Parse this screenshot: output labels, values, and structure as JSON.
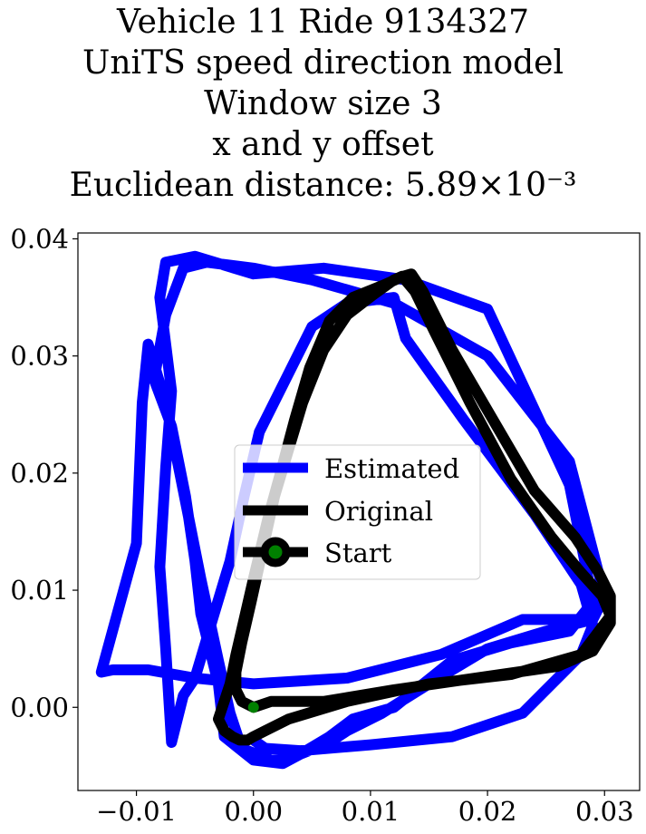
{
  "chart_data": {
    "type": "line",
    "title_lines": [
      "Vehicle 11 Ride 9134327",
      "UniTS speed direction model",
      "Window size 3",
      "x and y offset",
      "Euclidean distance: 5.89×10⁻³"
    ],
    "xlim": [
      -0.015,
      0.033
    ],
    "ylim": [
      -0.0071,
      0.0405
    ],
    "x_ticks": [
      -0.01,
      0.0,
      0.01,
      0.02,
      0.03
    ],
    "x_tick_labels": [
      "−0.01",
      "0.00",
      "0.01",
      "0.02",
      "0.03"
    ],
    "y_ticks": [
      0.0,
      0.01,
      0.02,
      0.03,
      0.04
    ],
    "y_tick_labels": [
      "0.00",
      "0.01",
      "0.02",
      "0.03",
      "0.04"
    ],
    "grid": false,
    "legend_position": "center",
    "series": [
      {
        "name": "Estimated",
        "color": "#0000ff",
        "x": [
          0.0,
          0.001,
          0.004,
          0.01,
          0.017,
          0.023,
          0.028,
          0.029,
          0.028,
          0.024,
          0.018,
          0.013,
          0.012,
          0.008,
          0.005,
          0.003,
          0.0005,
          -0.0008,
          -0.002,
          -0.0035,
          -0.005,
          -0.006,
          -0.0065,
          -0.007,
          -0.0075,
          -0.008,
          -0.0075,
          -0.007,
          -0.0075,
          -0.008,
          -0.0075,
          -0.005,
          0.0,
          0.006,
          0.013,
          0.02,
          0.027,
          0.029,
          0.027,
          0.022,
          0.017,
          0.012,
          0.0085,
          0.0065,
          0.004,
          0.0025,
          0.0,
          -0.0025,
          -0.003,
          -0.0045,
          -0.005,
          -0.0058,
          -0.007,
          -0.0085,
          -0.0075,
          -0.006,
          -0.004,
          0.0,
          0.005,
          0.012,
          0.02,
          0.027,
          0.03,
          0.029,
          0.025,
          0.02,
          0.015,
          0.011,
          0.008,
          0.0065,
          0.004,
          0.0015,
          -0.001,
          -0.002,
          -0.003,
          -0.0045,
          -0.006,
          -0.0075,
          -0.009,
          -0.0095,
          -0.01,
          -0.013,
          -0.012,
          -0.009,
          -0.005,
          0.0,
          0.008,
          0.016,
          0.023,
          0.028
        ],
        "y": [
          -0.0028,
          -0.0035,
          -0.0037,
          -0.0032,
          -0.0025,
          -0.0005,
          0.0045,
          0.007,
          0.0105,
          0.0165,
          0.0245,
          0.0315,
          0.035,
          0.0345,
          0.0325,
          0.0285,
          0.0235,
          0.018,
          0.0125,
          0.0075,
          0.0025,
          0.001,
          -0.001,
          -0.003,
          0.005,
          0.012,
          0.0205,
          0.027,
          0.031,
          0.035,
          0.038,
          0.0385,
          0.037,
          0.0375,
          0.0365,
          0.034,
          0.019,
          0.009,
          0.0065,
          0.0055,
          0.004,
          0.0,
          -0.001,
          -0.0025,
          -0.004,
          -0.0048,
          -0.0045,
          -0.0025,
          0.002,
          0.008,
          0.0125,
          0.018,
          0.024,
          0.028,
          0.0335,
          0.0375,
          0.038,
          0.0375,
          0.0365,
          0.0345,
          0.03,
          0.021,
          0.0095,
          0.0075,
          0.0065,
          0.005,
          0.002,
          -0.0005,
          -0.002,
          -0.003,
          -0.004,
          -0.0045,
          -0.0035,
          -0.0005,
          0.004,
          0.011,
          0.0185,
          0.026,
          0.031,
          0.026,
          0.014,
          0.003,
          0.0032,
          0.0032,
          0.0025,
          0.002,
          0.0025,
          0.0045,
          0.0075,
          0.0075
        ]
      },
      {
        "name": "Original",
        "color": "#000000",
        "x": [
          0.0,
          0.0015,
          0.0025,
          0.006,
          0.012,
          0.019,
          0.026,
          0.029,
          0.0305,
          0.0305,
          0.0295,
          0.0275,
          0.024,
          0.0205,
          0.017,
          0.0145,
          0.0135,
          0.0128,
          0.011,
          0.0085,
          0.0065,
          0.0048,
          0.0035,
          0.0023,
          0.0012,
          0.0,
          -0.0008,
          -0.0015,
          -0.002,
          -0.0025,
          -0.003,
          -0.0025,
          -0.0018,
          -0.0012,
          -0.0005,
          0.0,
          0.001,
          0.003,
          0.008,
          0.015,
          0.022,
          0.028,
          0.0305,
          0.0298,
          0.028,
          0.0255,
          0.022,
          0.0185,
          0.0155,
          0.0138,
          0.0127,
          0.012,
          0.0102,
          0.008,
          0.006,
          0.0042,
          0.003,
          0.0018,
          0.0008,
          -0.0002,
          -0.001,
          -0.0015,
          -0.0015,
          -0.001,
          0.0
        ],
        "y": [
          0.0,
          0.0005,
          0.0005,
          0.0005,
          0.0015,
          0.0025,
          0.0035,
          0.0048,
          0.0072,
          0.0095,
          0.0115,
          0.0145,
          0.0185,
          0.0245,
          0.0305,
          0.0355,
          0.037,
          0.0368,
          0.036,
          0.035,
          0.033,
          0.029,
          0.0245,
          0.02,
          0.016,
          0.011,
          0.0075,
          0.0045,
          0.002,
          0.0005,
          -0.001,
          -0.002,
          -0.0025,
          -0.0028,
          -0.0028,
          -0.0025,
          -0.002,
          -0.001,
          0.0005,
          0.002,
          0.0028,
          0.0045,
          0.0078,
          0.0095,
          0.0115,
          0.0145,
          0.0195,
          0.026,
          0.032,
          0.0355,
          0.0368,
          0.0365,
          0.0352,
          0.0335,
          0.0305,
          0.026,
          0.022,
          0.018,
          0.0135,
          0.009,
          0.0055,
          0.003,
          0.0015,
          0.0005,
          0.0
        ]
      }
    ],
    "start_point": {
      "name": "Start",
      "x": 0.0,
      "y": 0.0,
      "fill_color": "#008000",
      "edge_color": "#000000"
    }
  }
}
